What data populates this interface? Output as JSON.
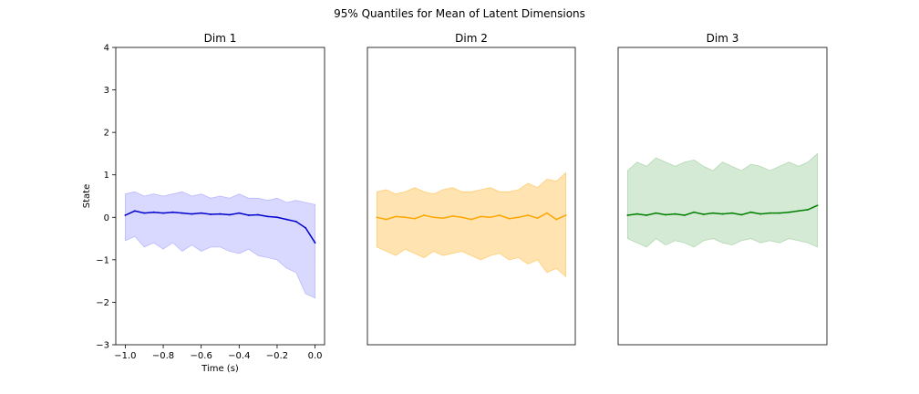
{
  "suptitle": "95% Quantiles for Mean of Latent Dimensions",
  "chart_data": [
    {
      "type": "line",
      "title": "Dim 1",
      "xlabel": "Time (s)",
      "ylabel": "State",
      "xlim": [
        -1.05,
        0.05
      ],
      "ylim": [
        -3,
        4
      ],
      "xticks": [
        -1.0,
        -0.8,
        -0.6,
        -0.4,
        -0.2,
        0.0
      ],
      "xtick_labels": [
        "−1.0",
        "−0.8",
        "−0.6",
        "−0.4",
        "−0.2",
        "0.0"
      ],
      "yticks": [
        -3,
        -2,
        -1,
        0,
        1,
        2,
        3,
        4
      ],
      "ytick_labels": [
        "−3",
        "−2",
        "−1",
        "0",
        "1",
        "2",
        "3",
        "4"
      ],
      "color": "#0000cc",
      "band_color": "#8080ff",
      "x": [
        -1.0,
        -0.95,
        -0.9,
        -0.85,
        -0.8,
        -0.75,
        -0.7,
        -0.65,
        -0.6,
        -0.55,
        -0.5,
        -0.45,
        -0.4,
        -0.35,
        -0.3,
        -0.25,
        -0.2,
        -0.15,
        -0.1,
        -0.05,
        0.0
      ],
      "mean": [
        0.05,
        0.15,
        0.1,
        0.12,
        0.1,
        0.12,
        0.1,
        0.08,
        0.1,
        0.07,
        0.08,
        0.06,
        0.1,
        0.05,
        0.06,
        0.02,
        0.0,
        -0.05,
        -0.1,
        -0.25,
        -0.6
      ],
      "upper": [
        0.55,
        0.6,
        0.5,
        0.55,
        0.5,
        0.55,
        0.6,
        0.5,
        0.55,
        0.45,
        0.5,
        0.45,
        0.55,
        0.45,
        0.45,
        0.4,
        0.45,
        0.35,
        0.4,
        0.35,
        0.3
      ],
      "lower": [
        -0.55,
        -0.45,
        -0.7,
        -0.6,
        -0.75,
        -0.6,
        -0.8,
        -0.65,
        -0.8,
        -0.7,
        -0.7,
        -0.8,
        -0.85,
        -0.75,
        -0.9,
        -0.95,
        -1.0,
        -1.2,
        -1.3,
        -1.8,
        -1.9
      ]
    },
    {
      "type": "line",
      "title": "Dim 2",
      "xlim": [
        -1.05,
        0.05
      ],
      "ylim": [
        -3,
        4
      ],
      "color": "#ffa500",
      "band_color": "#ffa500",
      "x": [
        -1.0,
        -0.95,
        -0.9,
        -0.85,
        -0.8,
        -0.75,
        -0.7,
        -0.65,
        -0.6,
        -0.55,
        -0.5,
        -0.45,
        -0.4,
        -0.35,
        -0.3,
        -0.25,
        -0.2,
        -0.15,
        -0.1,
        -0.05,
        0.0
      ],
      "mean": [
        0.0,
        -0.05,
        0.02,
        0.0,
        -0.03,
        0.05,
        0.0,
        -0.02,
        0.03,
        0.0,
        -0.05,
        0.02,
        0.0,
        0.05,
        -0.03,
        0.0,
        0.05,
        -0.02,
        0.1,
        -0.05,
        0.05
      ],
      "upper": [
        0.6,
        0.65,
        0.55,
        0.6,
        0.7,
        0.6,
        0.55,
        0.65,
        0.7,
        0.6,
        0.6,
        0.65,
        0.7,
        0.6,
        0.6,
        0.65,
        0.8,
        0.7,
        0.9,
        0.85,
        1.05
      ],
      "lower": [
        -0.7,
        -0.8,
        -0.9,
        -0.75,
        -0.85,
        -0.95,
        -0.8,
        -0.9,
        -0.85,
        -0.8,
        -0.9,
        -1.0,
        -0.9,
        -0.85,
        -1.0,
        -0.95,
        -1.1,
        -1.0,
        -1.3,
        -1.2,
        -1.4
      ]
    },
    {
      "type": "line",
      "title": "Dim 3",
      "xlim": [
        -1.05,
        0.05
      ],
      "ylim": [
        -3,
        4
      ],
      "color": "#008000",
      "band_color": "#73b973",
      "x": [
        -1.0,
        -0.95,
        -0.9,
        -0.85,
        -0.8,
        -0.75,
        -0.7,
        -0.65,
        -0.6,
        -0.55,
        -0.5,
        -0.45,
        -0.4,
        -0.35,
        -0.3,
        -0.25,
        -0.2,
        -0.15,
        -0.1,
        -0.05,
        0.0
      ],
      "mean": [
        0.05,
        0.08,
        0.05,
        0.1,
        0.06,
        0.08,
        0.05,
        0.12,
        0.07,
        0.1,
        0.08,
        0.1,
        0.06,
        0.12,
        0.08,
        0.1,
        0.1,
        0.12,
        0.15,
        0.18,
        0.28
      ],
      "upper": [
        1.1,
        1.3,
        1.2,
        1.4,
        1.3,
        1.2,
        1.3,
        1.35,
        1.2,
        1.1,
        1.3,
        1.2,
        1.1,
        1.25,
        1.2,
        1.1,
        1.2,
        1.3,
        1.2,
        1.3,
        1.5
      ],
      "lower": [
        -0.5,
        -0.6,
        -0.7,
        -0.5,
        -0.65,
        -0.55,
        -0.6,
        -0.7,
        -0.55,
        -0.5,
        -0.6,
        -0.65,
        -0.55,
        -0.5,
        -0.6,
        -0.55,
        -0.6,
        -0.5,
        -0.55,
        -0.6,
        -0.7
      ]
    }
  ]
}
